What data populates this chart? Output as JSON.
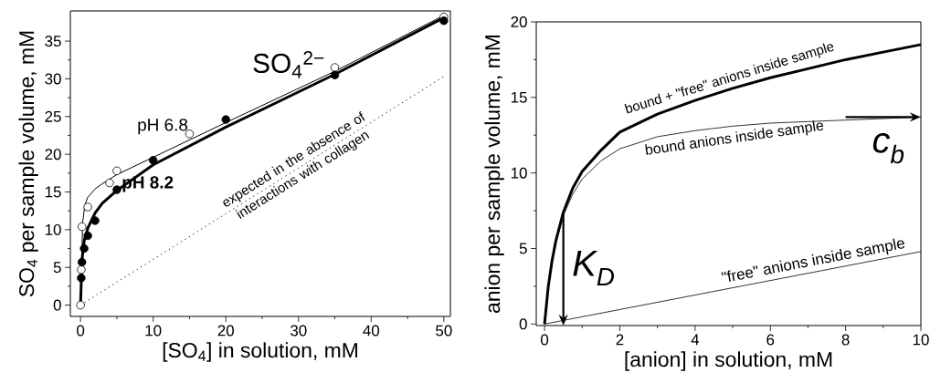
{
  "chart_data": [
    {
      "type": "scatter",
      "xlabel": "[SO$_{4}$] in solution,  mM",
      "ylabel": "SO$_{4}$ per sample volume, mM",
      "xlim": [
        -1.4,
        50.9
      ],
      "ylim": [
        -1.5,
        39
      ],
      "xticks": [
        0,
        10,
        20,
        30,
        40,
        50
      ],
      "yticks": [
        0,
        5,
        10,
        15,
        20,
        25,
        30,
        35
      ],
      "annotations": [
        "SO$_{4}$$^{2−}$"
      ],
      "series": [
        {
          "type": "line",
          "color": "#000000",
          "x": [
            0,
            0.3,
            0.6,
            1,
            2,
            3,
            5,
            10,
            20,
            35,
            50
          ],
          "values": [
            0,
            11,
            13.3,
            14.3,
            15.4,
            16.1,
            17.3,
            19.6,
            24.2,
            31,
            38.4
          ]
        },
        {
          "type": "line",
          "color": "#000000",
          "x": [
            0,
            0.2,
            0.5,
            1,
            2,
            3,
            5,
            10,
            20,
            35,
            50
          ],
          "values": [
            0,
            6,
            8.5,
            10.2,
            12.2,
            13.5,
            15.2,
            18.6,
            23.6,
            30.6,
            38.1
          ]
        },
        {
          "type": "line",
          "name": "expected in the absence of interactions with collagen",
          "color": "#000000",
          "line_style": "dotted",
          "x": [
            0,
            50
          ],
          "values": [
            0,
            30.3
          ]
        },
        {
          "type": "scatter",
          "name": "pH 6.8",
          "color": "#000000",
          "marker": "circle",
          "x": [
            0,
            0.1,
            0.2,
            1,
            4,
            5,
            15,
            35,
            50
          ],
          "values": [
            0,
            4.7,
            10.4,
            13,
            16.2,
            17.8,
            22.7,
            31.5,
            38.2
          ]
        },
        {
          "type": "scatter",
          "name": "pH 8.2",
          "color": "#000000",
          "marker": "circle",
          "x": [
            0.1,
            0.2,
            0.5,
            1,
            2,
            5,
            10,
            20,
            35,
            50
          ],
          "values": [
            3.6,
            5.7,
            7.5,
            9.2,
            11.2,
            15.3,
            19.2,
            24.6,
            30.5,
            37.7
          ]
        }
      ]
    },
    {
      "type": "line",
      "xlabel": "[anion] in solution,  mM",
      "ylabel": "anion per sample volume, mM",
      "xlim": [
        -0.22,
        10
      ],
      "ylim": [
        -0.1,
        20
      ],
      "xticks": [
        0,
        2,
        4,
        6,
        8,
        10
      ],
      "yticks": [
        0,
        5,
        10,
        15,
        20
      ],
      "annotations": [
        {
          "text": "K$_{D}$",
          "x": 0.5,
          "y": 7.4
        },
        {
          "text": "c$_{b}$",
          "x": 10,
          "y": 13.7
        }
      ],
      "series": [
        {
          "name": "bound + \"free\" anions  inside sample",
          "color": "#000000",
          "x": [
            0,
            0.1,
            0.2,
            0.3,
            0.5,
            0.75,
            1,
            1.5,
            2,
            3,
            4,
            5,
            6,
            7,
            8,
            9,
            10
          ],
          "values": [
            0,
            2.5,
            4.2,
            5.5,
            7.4,
            9,
            10.1,
            11.5,
            12.7,
            13.9,
            14.8,
            15.6,
            16.3,
            16.9,
            17.5,
            18,
            18.5
          ]
        },
        {
          "name": "bound anions  inside sample",
          "color": "#000000",
          "x": [
            0,
            0.1,
            0.2,
            0.3,
            0.5,
            0.75,
            1,
            1.5,
            2,
            3,
            4,
            5,
            6,
            7,
            8,
            9,
            10
          ],
          "values": [
            0,
            2.4,
            4.1,
            5.4,
            7.2,
            8.6,
            9.6,
            10.8,
            11.6,
            12.4,
            12.8,
            13.1,
            13.3,
            13.4,
            13.5,
            13.6,
            13.7
          ]
        },
        {
          "name": "\"free\" anions inside sample",
          "color": "#000000",
          "x": [
            0,
            10
          ],
          "values": [
            0,
            4.8
          ]
        }
      ]
    }
  ]
}
